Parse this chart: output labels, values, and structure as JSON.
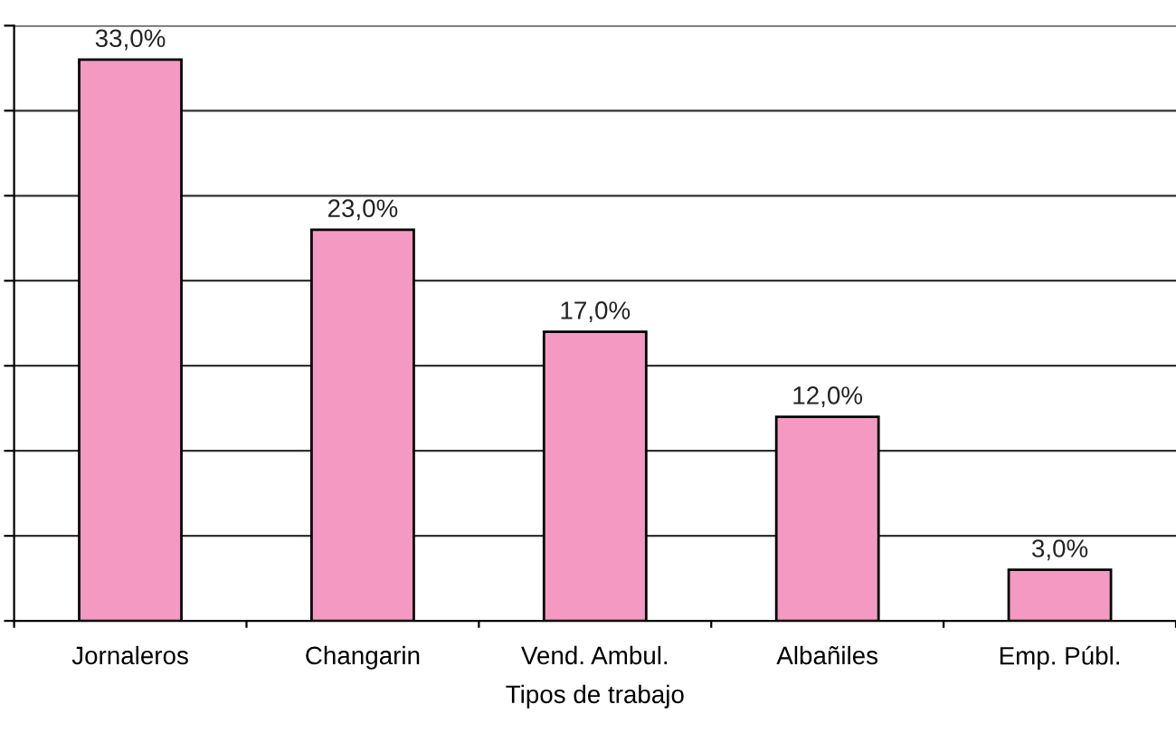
{
  "chart_data": {
    "type": "bar",
    "xlabel": "Tipos de trabajo",
    "categories": [
      "Jornaleros",
      "Changarin",
      "Vend. Ambul.",
      "Albañiles",
      "Emp. Públ."
    ],
    "values": [
      33,
      23,
      17,
      12,
      3
    ],
    "value_labels": [
      "33,0%",
      "23,0%",
      "17,0%",
      "12,0%",
      "3,0%"
    ],
    "color": "#f49ac2",
    "ylim": [
      0,
      35
    ],
    "yticks": [
      {
        "value": 0,
        "label": null
      },
      {
        "value": 5,
        "label": null
      },
      {
        "value": 10,
        "label": null
      },
      {
        "value": 15,
        "label": null
      },
      {
        "value": 20,
        "label": null
      },
      {
        "value": 25,
        "label": null
      },
      {
        "value": 30,
        "label": null
      },
      {
        "value": 35,
        "label": null
      }
    ],
    "grid": "y",
    "tick_labels": "x"
  }
}
